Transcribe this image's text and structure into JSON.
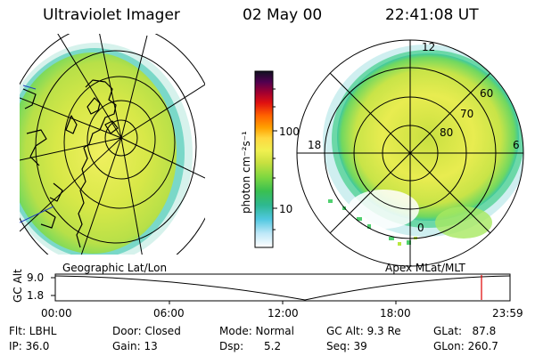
{
  "header": {
    "instrument": "Ultraviolet Imager",
    "date": "02 May 00",
    "time": "22:41:08 UT"
  },
  "colorbar": {
    "unit_label": "photon cm⁻²s⁻¹",
    "ticks": [
      "100",
      "10"
    ],
    "colors": [
      "#ffffff",
      "#d8f0ff",
      "#8ee0f0",
      "#30c8d0",
      "#2ec070",
      "#7fd840",
      "#c8e040",
      "#f0f060",
      "#ffe040",
      "#ffb000",
      "#ff7000",
      "#e81010",
      "#a00020",
      "#600040",
      "#300040",
      "#101020"
    ]
  },
  "geo_panel": {
    "label": "Geographic Lat/Lon"
  },
  "apex_panel": {
    "label": "Apex MLat/MLT",
    "mlt_labels": [
      "12",
      "18",
      "6",
      "0"
    ],
    "lat_labels": [
      "60",
      "70",
      "80"
    ]
  },
  "altitude_plot": {
    "axis_label": "GC Alt",
    "y_ticks": [
      "9.0",
      "1.8"
    ],
    "x_ticks": [
      "00:00",
      "06:00",
      "12:00",
      "18:00",
      "23:59"
    ],
    "marker_color": "#e00000"
  },
  "status": {
    "flt": "Flt: LBHL",
    "ip": "IP: 36.0",
    "door": "Door: Closed",
    "gain": "Gain: 13",
    "mode": "Mode: Normal",
    "dsp": "Dsp:      5.2",
    "gc_alt": "GC Alt: 9.3 Re",
    "seq": "Seq: 39",
    "glat": "GLat:   87.8",
    "glon": "GLon: 260.7"
  }
}
